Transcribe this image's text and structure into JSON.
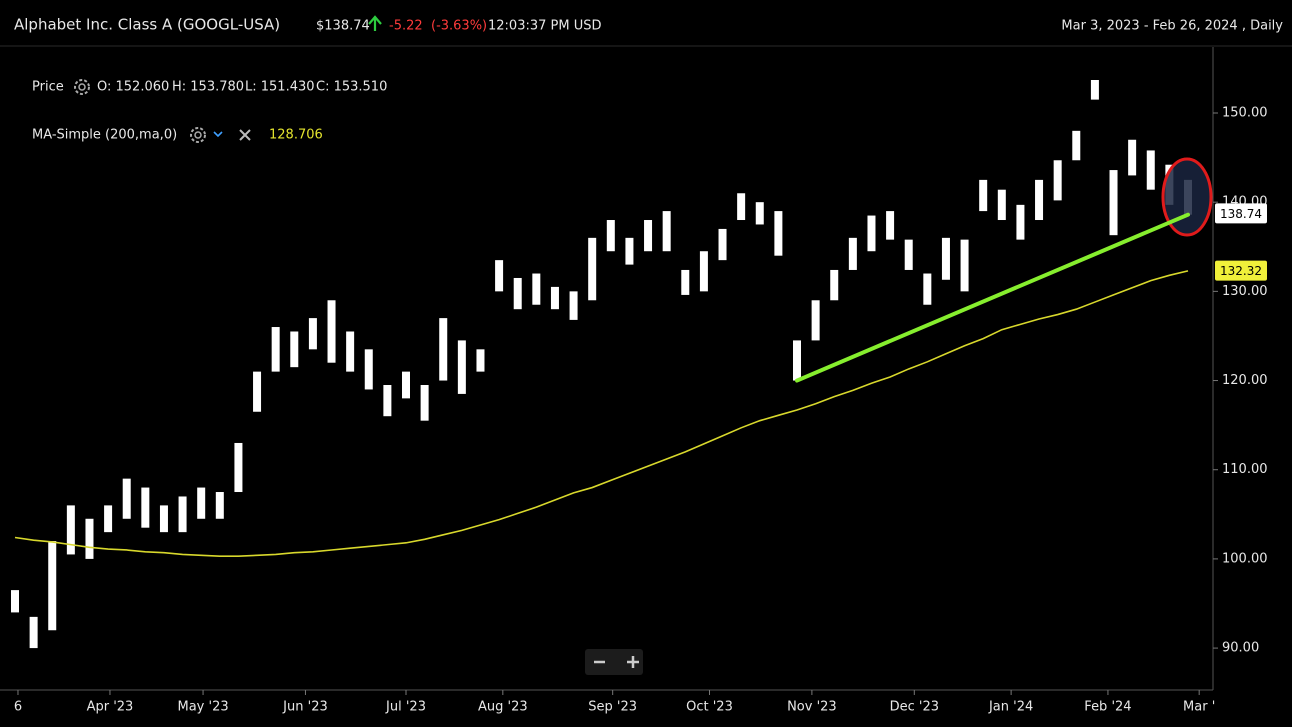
{
  "header": {
    "title": "Alphabet Inc. Class A (GOOGL-USA)",
    "price": "$138.74",
    "change": -5.22,
    "change_pct": "(-3.63%)",
    "time": "12:03:37 PM USD",
    "range": "Mar 3, 2023 - Feb 26, 2024 , Daily"
  },
  "legend": {
    "price_readout": [
      "O: 152.060",
      "H: 153.780",
      "L: 151.430",
      "C: 153.510"
    ],
    "ma_readout": 128.706
  },
  "chart_data": {
    "type": "candlestick",
    "xlim": [
      0,
      63
    ],
    "xticks": [
      {
        "value": 0.16,
        "label": "6"
      },
      {
        "value": 5.1,
        "label": "Apr '23"
      },
      {
        "value": 10.1,
        "label": "May '23"
      },
      {
        "value": 15.6,
        "label": "Jun '23"
      },
      {
        "value": 21.0,
        "label": "Jul '23"
      },
      {
        "value": 26.2,
        "label": "Aug '23"
      },
      {
        "value": 32.1,
        "label": "Sep '23"
      },
      {
        "value": 37.3,
        "label": "Oct '23"
      },
      {
        "value": 42.8,
        "label": "Nov '23"
      },
      {
        "value": 48.3,
        "label": "Dec '23"
      },
      {
        "value": 53.5,
        "label": "Jan '24"
      },
      {
        "value": 58.7,
        "label": "Feb '24"
      },
      {
        "value": 63.6,
        "label": "Mar '"
      }
    ],
    "ylim": [
      85.3,
      157.4
    ],
    "yticks": [
      {
        "value": 90,
        "label": "90.00"
      },
      {
        "value": 100,
        "label": "100.00"
      },
      {
        "value": 110,
        "label": "110.00"
      },
      {
        "value": 120,
        "label": "120.00"
      },
      {
        "value": 130,
        "label": "130.00"
      },
      {
        "value": 140,
        "label": "140.00"
      },
      {
        "value": 150,
        "label": "150.00"
      }
    ],
    "series": [
      {
        "name": "Price",
        "color": "#ffffff",
        "low": [
          94,
          90,
          92,
          100.5,
          100,
          103,
          104.5,
          103.5,
          103,
          103,
          104.5,
          104.5,
          107.5,
          116.5,
          121,
          121.5,
          123.5,
          122,
          121,
          119,
          116,
          118,
          115.5,
          120,
          118.5,
          121,
          130,
          128,
          128.5,
          128,
          126.8,
          129,
          134.5,
          133,
          134.5,
          134.5,
          129.6,
          130,
          133.5,
          138,
          137.5,
          134,
          120,
          124.5,
          129,
          132.4,
          134.5,
          135.8,
          132.4,
          128.5,
          131.3,
          130,
          139,
          138,
          135.8,
          138,
          140.2,
          144.7,
          151.5,
          136.3,
          143,
          141.4,
          139.7,
          138.6
        ],
        "high": [
          96.5,
          93.5,
          102,
          106,
          104.5,
          106,
          109,
          108,
          106,
          107,
          108,
          107.5,
          113,
          121,
          126,
          125.5,
          127,
          129,
          125.5,
          123.5,
          119.5,
          121,
          119.5,
          127,
          124.5,
          123.5,
          133.5,
          131.5,
          132,
          130.5,
          130,
          136,
          138,
          136,
          138,
          139,
          132.4,
          134.5,
          137,
          141,
          140,
          139,
          124.5,
          129,
          132.4,
          136,
          138.5,
          139,
          135.8,
          132,
          136,
          135.8,
          142.5,
          141.4,
          139.7,
          142.5,
          144.7,
          148,
          153.7,
          143.6,
          147,
          145.8,
          144.2,
          142.5
        ]
      },
      {
        "name": "MA-Simple (200,ma,0)",
        "color": "#d8d82c",
        "values": [
          102.4,
          102.1,
          101.9,
          101.6,
          101.3,
          101.1,
          101.0,
          100.8,
          100.7,
          100.5,
          100.4,
          100.3,
          100.3,
          100.4,
          100.5,
          100.7,
          100.8,
          101.0,
          101.2,
          101.4,
          101.6,
          101.8,
          102.2,
          102.7,
          103.2,
          103.8,
          104.4,
          105.1,
          105.8,
          106.6,
          107.4,
          108.0,
          108.8,
          109.6,
          110.4,
          111.2,
          112.0,
          112.9,
          113.8,
          114.7,
          115.5,
          116.1,
          116.7,
          117.4,
          118.2,
          118.9,
          119.7,
          120.4,
          121.3,
          122.1,
          123.0,
          123.9,
          124.7,
          125.7,
          126.3,
          126.9,
          127.4,
          128.0,
          128.8,
          129.6,
          130.4,
          131.2,
          131.8,
          132.3
        ]
      }
    ],
    "trendline": {
      "color": "#86ee2e",
      "values": [
        120,
        138.6
      ]
    },
    "last_price": 138.74,
    "last_ma": 132.32
  }
}
